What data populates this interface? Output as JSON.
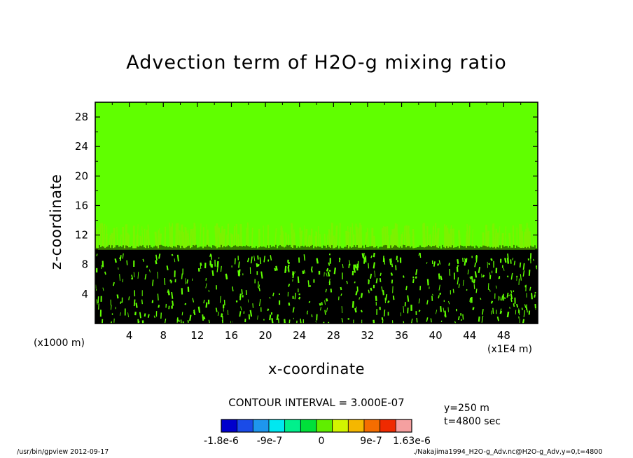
{
  "chart_data": {
    "type": "heatmap",
    "title": "Advection term of H2O-g mixing ratio",
    "xlabel": "x-coordinate",
    "ylabel": "z-coordinate",
    "x_unit_label": "(x1000 m)",
    "x_scale_label": "(x1E4 m)",
    "xlim": [
      0,
      52
    ],
    "ylim": [
      0,
      30
    ],
    "x_ticks": [
      4,
      8,
      12,
      16,
      20,
      24,
      28,
      32,
      36,
      40,
      44,
      48
    ],
    "y_ticks": [
      4,
      8,
      12,
      16,
      20,
      24,
      28
    ],
    "x_tick_labels": [
      "4",
      "8",
      "12",
      "16",
      "20",
      "24",
      "28",
      "32",
      "36",
      "40",
      "44",
      "48"
    ],
    "y_tick_labels": [
      "4",
      "8",
      "12",
      "16",
      "20",
      "24",
      "28"
    ],
    "background_value": 0,
    "regions": [
      {
        "name": "quiescent upper layer",
        "z_range": [
          13.7,
          30
        ],
        "dominant_level": "0"
      },
      {
        "name": "fluctuating band",
        "z_range": [
          10,
          13.7
        ],
        "dominant_level": "0"
      },
      {
        "name": "dense contour layer",
        "z_range": [
          0,
          10
        ],
        "dominant_level": "contour lines"
      }
    ],
    "contour_interval_text": "CONTOUR INTERVAL = 3.000E-07",
    "colorbar": {
      "levels": [
        "-1.8e-6",
        "-9e-7",
        "0",
        "9e-7",
        "1.63e-6"
      ],
      "colors": [
        "#0000cc",
        "#1a4be8",
        "#1e96ee",
        "#00e8f0",
        "#00f08c",
        "#00e03a",
        "#60ee00",
        "#d2f500",
        "#f5b700",
        "#f56d00",
        "#ef2a00",
        "#f5a0a0"
      ]
    }
  },
  "annotations": {
    "y_position": "y=250 m",
    "time": "t=4800 sec"
  },
  "footer": {
    "left": "/usr/bin/gpview   2012-09-17",
    "right": "./Nakajima1994_H2O-g_Adv.nc@H2O-g_Adv,y=0,t=4800"
  },
  "colors": {
    "field_zero": "#60ff00",
    "field_light": "#7cf200",
    "contour": "#000000"
  }
}
